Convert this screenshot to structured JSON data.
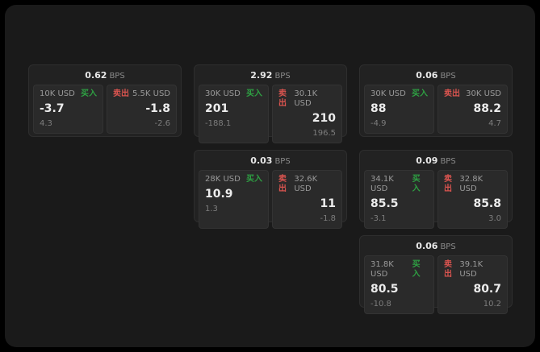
{
  "labels": {
    "bps": "BPS",
    "buy": "买入",
    "sell": "卖出"
  },
  "colors": {
    "buy": "#2ea043",
    "sell": "#d9544f"
  },
  "cards": [
    {
      "bps": "0.62",
      "buy": {
        "size": "10K USD",
        "value": "-3.7",
        "sub": "4.3"
      },
      "sell": {
        "size": "5.5K USD",
        "value": "-1.8",
        "sub": "-2.6"
      }
    },
    {
      "bps": "2.92",
      "buy": {
        "size": "30K USD",
        "value": "201",
        "sub": "-188.1"
      },
      "sell": {
        "size": "30.1K USD",
        "value": "210",
        "sub": "196.5"
      }
    },
    {
      "bps": "0.06",
      "buy": {
        "size": "30K USD",
        "value": "88",
        "sub": "-4.9"
      },
      "sell": {
        "size": "30K USD",
        "value": "88.2",
        "sub": "4.7"
      }
    },
    {
      "bps": "0.03",
      "buy": {
        "size": "28K USD",
        "value": "10.9",
        "sub": "1.3"
      },
      "sell": {
        "size": "32.6K USD",
        "value": "11",
        "sub": "-1.8"
      }
    },
    {
      "bps": "0.09",
      "buy": {
        "size": "34.1K USD",
        "value": "85.5",
        "sub": "-3.1"
      },
      "sell": {
        "size": "32.8K USD",
        "value": "85.8",
        "sub": "3.0"
      }
    },
    {
      "bps": "0.06",
      "buy": {
        "size": "31.8K USD",
        "value": "80.5",
        "sub": "-10.8"
      },
      "sell": {
        "size": "39.1K USD",
        "value": "80.7",
        "sub": "10.2"
      }
    }
  ]
}
